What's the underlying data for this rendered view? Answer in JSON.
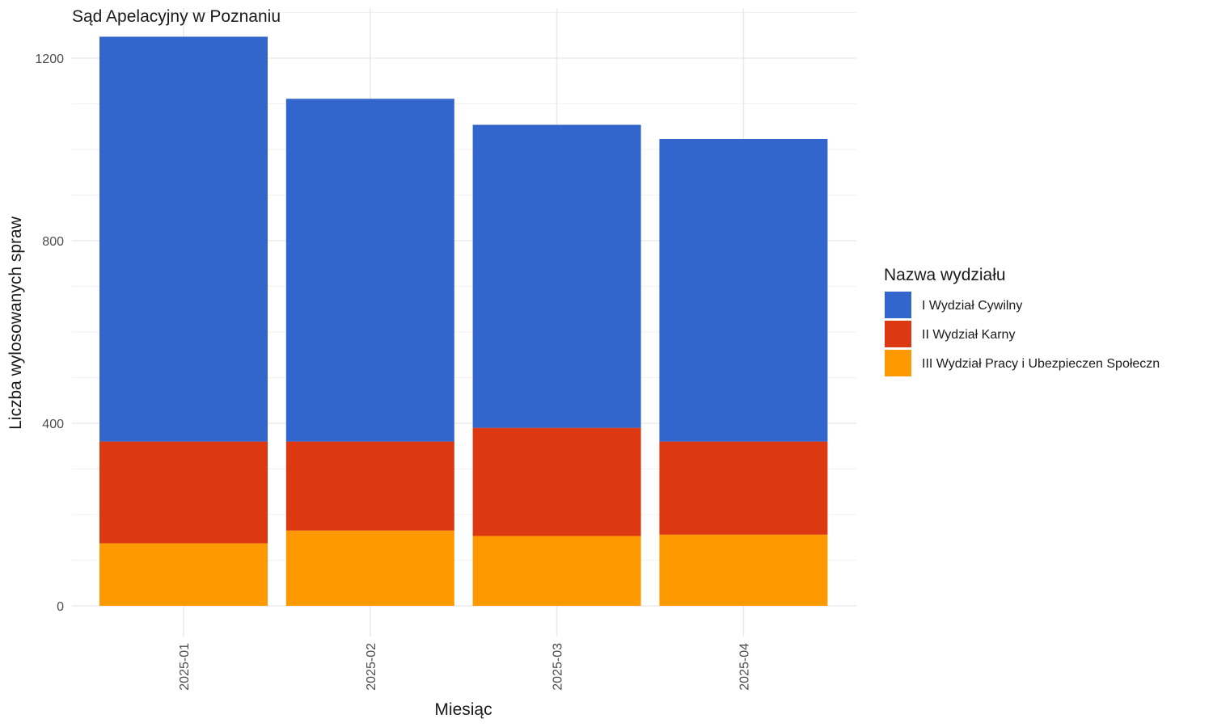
{
  "chart_data": {
    "type": "bar",
    "stacked": true,
    "title": "Sąd Apelacyjny w Poznaniu",
    "xlabel": "Miesiąc",
    "ylabel": "Liczba wylosowanych spraw",
    "categories": [
      "2025-01",
      "2025-02",
      "2025-03",
      "2025-04"
    ],
    "ylim": [
      0,
      1300
    ],
    "yticks": [
      0,
      400,
      800,
      1200
    ],
    "grid": true,
    "legend": {
      "title": "Nazwa wydziału",
      "placement": "right"
    },
    "series": [
      {
        "name": "III Wydział Pracy i Ubezpieczen Społeczn",
        "color": "#FF9900",
        "values": [
          137,
          165,
          153,
          156
        ]
      },
      {
        "name": "II Wydział Karny",
        "color": "#DC3912",
        "values": [
          223,
          195,
          237,
          204
        ]
      },
      {
        "name": "I Wydział Cywilny",
        "color": "#3366CC",
        "values": [
          887,
          751,
          664,
          663
        ]
      }
    ],
    "legend_order": [
      "I Wydział Cywilny",
      "II Wydział Karny",
      "III Wydział Pracy i Ubezpieczen Społeczn"
    ]
  }
}
